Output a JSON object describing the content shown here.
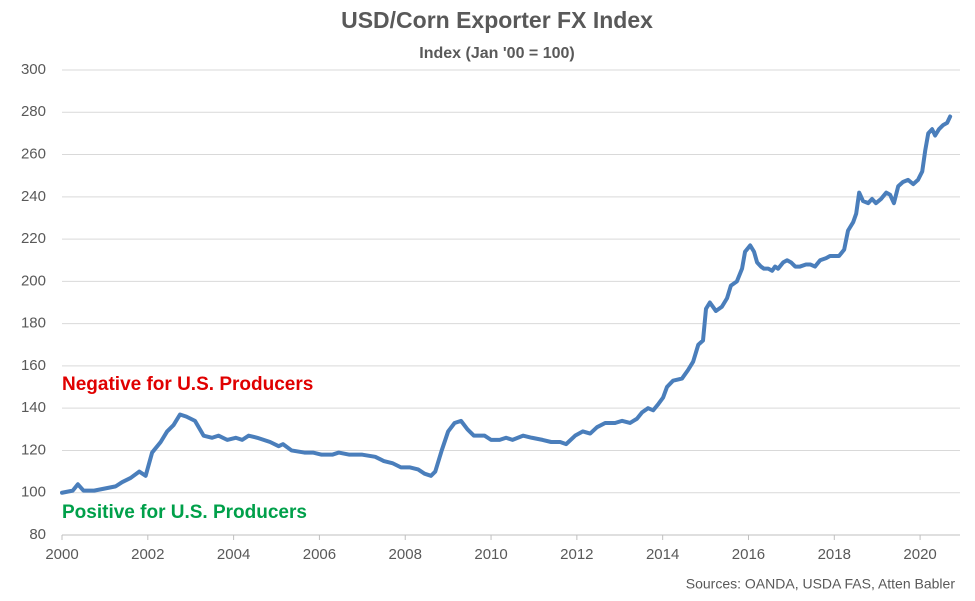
{
  "chart_data": {
    "type": "line",
    "title": "USD/Corn Exporter FX Index",
    "subtitle": "Index (Jan '00 = 100)",
    "annotations": [
      {
        "text": "Negative for U.S. Producers",
        "color": "#e00000"
      },
      {
        "text": "Positive for U.S. Producers",
        "color": "#00a04a"
      }
    ],
    "source": "Sources: OANDA, USDA FAS, Atten Babler",
    "x": [
      2000.0,
      2000.25,
      2000.37,
      2000.5,
      2000.75,
      2001.0,
      2001.25,
      2001.4,
      2001.6,
      2001.8,
      2001.95,
      2002.1,
      2002.3,
      2002.45,
      2002.6,
      2002.75,
      2002.9,
      2003.1,
      2003.3,
      2003.5,
      2003.65,
      2003.85,
      2004.05,
      2004.2,
      2004.35,
      2004.55,
      2004.85,
      2005.05,
      2005.15,
      2005.35,
      2005.65,
      2005.85,
      2006.05,
      2006.3,
      2006.45,
      2006.7,
      2007.0,
      2007.3,
      2007.5,
      2007.7,
      2007.9,
      2008.1,
      2008.3,
      2008.45,
      2008.6,
      2008.7,
      2008.85,
      2009.0,
      2009.15,
      2009.3,
      2009.45,
      2009.6,
      2009.85,
      2010.0,
      2010.2,
      2010.35,
      2010.5,
      2010.75,
      2010.95,
      2011.2,
      2011.4,
      2011.61,
      2011.75,
      2011.96,
      2012.14,
      2012.31,
      2012.47,
      2012.66,
      2012.89,
      2013.05,
      2013.24,
      2013.4,
      2013.52,
      2013.66,
      2013.78,
      2013.9,
      2014.01,
      2014.1,
      2014.24,
      2014.45,
      2014.59,
      2014.71,
      2014.83,
      2014.94,
      2015.01,
      2015.1,
      2015.24,
      2015.38,
      2015.5,
      2015.59,
      2015.73,
      2015.85,
      2015.92,
      2016.04,
      2016.13,
      2016.2,
      2016.29,
      2016.36,
      2016.46,
      2016.55,
      2016.62,
      2016.69,
      2016.81,
      2016.9,
      2016.99,
      2017.09,
      2017.2,
      2017.34,
      2017.44,
      2017.55,
      2017.67,
      2017.81,
      2017.9,
      2018.02,
      2018.11,
      2018.23,
      2018.32,
      2018.44,
      2018.51,
      2018.58,
      2018.67,
      2018.79,
      2018.88,
      2018.97,
      2019.09,
      2019.21,
      2019.3,
      2019.39,
      2019.49,
      2019.6,
      2019.72,
      2019.84,
      2019.95,
      2020.05,
      2020.12,
      2020.19,
      2020.28,
      2020.35,
      2020.44,
      2020.54,
      2020.63,
      2020.7
    ],
    "series": [
      {
        "name": "USD/Corn Exporter FX Index",
        "color": "#4a7ebb",
        "values": [
          100,
          101,
          104,
          101,
          101,
          102,
          103,
          105,
          107,
          110,
          108,
          119,
          124,
          129,
          132,
          137,
          136,
          134,
          127,
          126,
          127,
          125,
          126,
          125,
          127,
          126,
          124,
          122,
          123,
          120,
          119,
          119,
          118,
          118,
          119,
          118,
          118,
          117,
          115,
          114,
          112,
          112,
          111,
          109,
          108,
          110,
          120,
          129,
          133,
          134,
          130,
          127,
          127,
          125,
          125,
          126,
          125,
          127,
          126,
          125,
          124,
          124,
          123,
          127,
          129,
          128,
          131,
          133,
          133,
          134,
          133,
          135,
          138,
          140,
          139,
          142,
          145,
          150,
          153,
          154,
          158,
          162,
          170,
          172,
          187,
          190,
          186,
          188,
          192,
          198,
          200,
          206,
          214,
          217,
          214,
          209,
          207,
          206,
          206,
          205,
          207,
          206,
          209,
          210,
          209,
          207,
          207,
          208,
          208,
          207,
          210,
          211,
          212,
          212,
          212,
          215,
          224,
          228,
          232,
          242,
          238,
          237,
          239,
          237,
          239,
          242,
          241,
          237,
          245,
          247,
          248,
          246,
          248,
          252,
          262,
          270,
          272,
          269,
          272,
          274,
          275,
          278
        ]
      }
    ],
    "xlim": [
      2000,
      2020.93
    ],
    "xticks": [
      2000,
      2002,
      2004,
      2006,
      2008,
      2010,
      2012,
      2014,
      2016,
      2018,
      2020
    ],
    "ylim": [
      80,
      300
    ],
    "yticks": [
      80,
      100,
      120,
      140,
      160,
      180,
      200,
      220,
      240,
      260,
      280,
      300
    ],
    "grid": true
  }
}
